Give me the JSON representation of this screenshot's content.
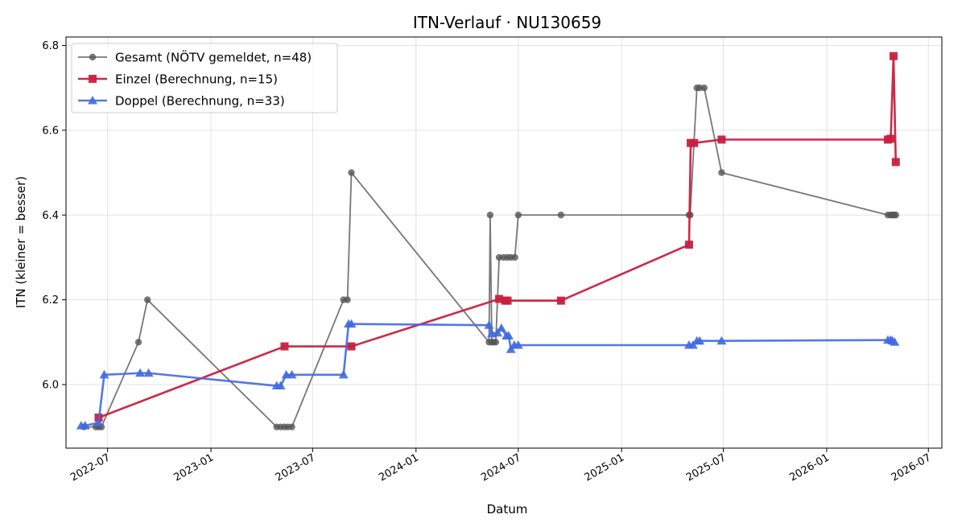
{
  "chart_data": {
    "type": "line",
    "title": "ITN-Verlauf · NU130659",
    "xlabel": "Datum",
    "ylabel": "ITN  (kleiner = besser)",
    "x_axis_type": "date",
    "xlim": [
      "2022-04-18",
      "2026-07-25"
    ],
    "ylim": [
      5.85,
      6.82
    ],
    "x_ticks": [
      "2022-07-01",
      "2023-01-01",
      "2023-07-01",
      "2024-01-01",
      "2024-07-01",
      "2025-01-01",
      "2025-07-01",
      "2026-01-01",
      "2026-07-01"
    ],
    "x_tick_labels": [
      "2022-07",
      "2023-01",
      "2023-07",
      "2024-01",
      "2024-07",
      "2025-01",
      "2025-07",
      "2026-01",
      "2026-07"
    ],
    "y_ticks": [
      6.0,
      6.2,
      6.4,
      6.6,
      6.8
    ],
    "y_tick_labels": [
      "6.0",
      "6.2",
      "6.4",
      "6.6",
      "6.8"
    ],
    "grid": true,
    "legend_position": "top-left",
    "series": [
      {
        "name": "Gesamt (NÖTV gemeldet, n=48)",
        "color": "#555555",
        "marker": "circle",
        "points": [
          [
            "2022-05-20",
            5.9
          ],
          [
            "2022-06-10",
            5.9
          ],
          [
            "2022-06-15",
            5.9
          ],
          [
            "2022-06-20",
            5.9
          ],
          [
            "2022-08-25",
            6.1
          ],
          [
            "2022-09-10",
            6.2
          ],
          [
            "2023-04-28",
            5.9
          ],
          [
            "2023-05-05",
            5.9
          ],
          [
            "2023-05-12",
            5.9
          ],
          [
            "2023-05-18",
            5.9
          ],
          [
            "2023-05-25",
            5.9
          ],
          [
            "2023-08-25",
            6.2
          ],
          [
            "2023-09-01",
            6.2
          ],
          [
            "2023-09-08",
            6.5
          ],
          [
            "2024-05-10",
            6.1
          ],
          [
            "2024-05-12",
            6.4
          ],
          [
            "2024-05-15",
            6.1
          ],
          [
            "2024-05-18",
            6.1
          ],
          [
            "2024-05-22",
            6.1
          ],
          [
            "2024-05-28",
            6.3
          ],
          [
            "2024-06-05",
            6.3
          ],
          [
            "2024-06-12",
            6.3
          ],
          [
            "2024-06-18",
            6.3
          ],
          [
            "2024-06-25",
            6.3
          ],
          [
            "2024-07-01",
            6.4
          ],
          [
            "2024-09-15",
            6.4
          ],
          [
            "2025-05-01",
            6.4
          ],
          [
            "2025-05-03",
            6.4
          ],
          [
            "2025-05-15",
            6.7
          ],
          [
            "2025-05-20",
            6.7
          ],
          [
            "2025-05-28",
            6.7
          ],
          [
            "2025-06-28",
            6.5
          ],
          [
            "2026-04-20",
            6.4
          ],
          [
            "2026-04-25",
            6.4
          ],
          [
            "2026-04-28",
            6.4
          ],
          [
            "2026-05-01",
            6.4
          ],
          [
            "2026-05-04",
            6.4
          ]
        ]
      },
      {
        "name": "Einzel (Berechnung, n=15)",
        "color": "#c91f3f",
        "marker": "square",
        "points": [
          [
            "2022-06-15",
            5.922
          ],
          [
            "2023-05-12",
            6.09
          ],
          [
            "2023-09-08",
            6.09
          ],
          [
            "2024-05-28",
            6.202
          ],
          [
            "2024-06-08",
            6.198
          ],
          [
            "2024-06-12",
            6.198
          ],
          [
            "2024-09-15",
            6.198
          ],
          [
            "2025-05-01",
            6.33
          ],
          [
            "2025-05-04",
            6.57
          ],
          [
            "2025-05-10",
            6.57
          ],
          [
            "2025-06-28",
            6.578
          ],
          [
            "2026-04-20",
            6.578
          ],
          [
            "2026-04-25",
            6.58
          ],
          [
            "2026-04-30",
            6.775
          ],
          [
            "2026-05-04",
            6.525
          ]
        ]
      },
      {
        "name": "Doppel (Berechnung, n=33)",
        "color": "#4169e1",
        "marker": "triangle",
        "points": [
          [
            "2022-05-15",
            5.903
          ],
          [
            "2022-05-22",
            5.903
          ],
          [
            "2022-06-15",
            5.91
          ],
          [
            "2022-06-25",
            6.023
          ],
          [
            "2022-08-28",
            6.027
          ],
          [
            "2022-09-12",
            6.027
          ],
          [
            "2023-04-28",
            5.997
          ],
          [
            "2023-05-05",
            5.997
          ],
          [
            "2023-05-15",
            6.023
          ],
          [
            "2023-05-25",
            6.023
          ],
          [
            "2023-08-25",
            6.023
          ],
          [
            "2023-09-03",
            6.143
          ],
          [
            "2023-09-08",
            6.143
          ],
          [
            "2024-05-10",
            6.14
          ],
          [
            "2024-05-15",
            6.12
          ],
          [
            "2024-05-25",
            6.122
          ],
          [
            "2024-06-01",
            6.133
          ],
          [
            "2024-06-10",
            6.115
          ],
          [
            "2024-06-14",
            6.115
          ],
          [
            "2024-06-18",
            6.083
          ],
          [
            "2024-06-24",
            6.093
          ],
          [
            "2024-07-01",
            6.093
          ],
          [
            "2025-05-01",
            6.093
          ],
          [
            "2025-05-08",
            6.093
          ],
          [
            "2025-05-15",
            6.103
          ],
          [
            "2025-05-20",
            6.103
          ],
          [
            "2025-06-28",
            6.103
          ],
          [
            "2026-04-20",
            6.105
          ],
          [
            "2026-04-25",
            6.105
          ],
          [
            "2026-04-28",
            6.103
          ],
          [
            "2026-05-02",
            6.1
          ]
        ]
      }
    ]
  }
}
